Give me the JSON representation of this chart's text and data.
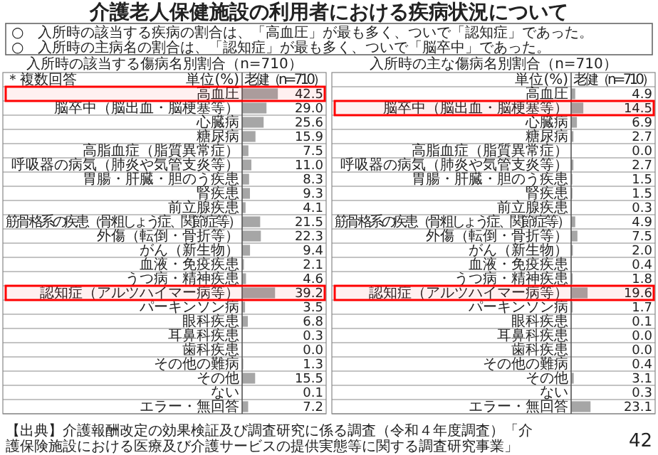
{
  "chart_data": [
    {
      "type": "bar",
      "orientation": "horizontal",
      "title": "入所時の該当する傷病名別割合（n=710）",
      "annotations": [
        "介護老人保健施設の利用者における疾病状況について",
        "○　入所時の該当する疾病の割合は、「高血圧」が最も多く、ついで「認知症」であった。",
        "○　入所時の主病名の割合は、「認知症」が最も多く、ついで「脳卒中」であった。",
        "＊複数回答",
        "単位(%)"
      ],
      "categories": [
        "高血圧",
        "脳卒中（脳出血・脳梗塞等）",
        "心臓病",
        "糖尿病",
        "高脂血症（脂質異常症）",
        "呼吸器の病気（肺炎や気管支炎等）",
        "胃腸・肝臓・胆のう疾患",
        "腎疾患",
        "前立腺疾患",
        "筋骨格系の疾患（骨粗しょう症、関節症等）",
        "外傷（転倒・骨折等）",
        "がん（新生物）",
        "血液・免疫疾患",
        "うつ病・精神疾患",
        "認知症（アルツハイマー病等）",
        "パーキンソン病",
        "眼科疾患",
        "耳鼻科疾患",
        "歯科疾患",
        "その他の難病",
        "その他",
        "ない",
        "エラー・無回答"
      ],
      "series": [
        {
          "name": "老健（n=710）",
          "color": "#a6a6a6",
          "values": [
            42.5,
            29.0,
            25.6,
            15.9,
            7.5,
            11.0,
            8.3,
            9.3,
            4.1,
            21.5,
            22.3,
            9.4,
            2.1,
            4.6,
            39.2,
            3.5,
            6.8,
            0.3,
            0.0,
            1.3,
            15.5,
            0.1,
            7.2
          ],
          "value_labels": [
            "42.5",
            "29.0",
            "25.6",
            "15.9",
            "7.5",
            "11.0",
            "8.3",
            "9.3",
            "4.1",
            "21.5",
            "22.3",
            "9.4",
            "2.1",
            "4.6",
            "39.2",
            "3.5",
            "6.8",
            "0.3",
            "0.0",
            "1.3",
            "15.5",
            "0.1",
            "7.2"
          ]
        }
      ],
      "xlim": [
        0,
        100
      ],
      "tick_labels": "y",
      "bands": [
        {
          "axis": "y",
          "from": "高血圧",
          "to": "高血圧",
          "color": "#ff0000"
        },
        {
          "axis": "y",
          "from": "認知症（アルツハイマー病等）",
          "to": "認知症（アルツハイマー病等）",
          "color": "#ff0000"
        }
      ]
    },
    {
      "type": "bar",
      "orientation": "horizontal",
      "title": "入所時の主な傷病名別割合（n=710）",
      "annotations": [
        "単位(%)",
        "【出典】介護報酬改定の効果検証及び調査研究に係る調査（令和４年度調査）「介護保険施設における医療及び介護サービスの提供実態等に関する調査研究事業」",
        "42"
      ],
      "categories": [
        "高血圧",
        "脳卒中（脳出血・脳梗塞等）",
        "心臓病",
        "糖尿病",
        "高脂血症（脂質異常症）",
        "呼吸器の病気（肺炎や気管支炎等）",
        "胃腸・肝臓・胆のう疾患",
        "腎疾患",
        "前立腺疾患",
        "筋骨格系の疾患（骨粗しょう症、関節症等）",
        "外傷（転倒・骨折等）",
        "がん（新生物）",
        "血液・免疫疾患",
        "うつ病・精神疾患",
        "認知症（アルツハイマー病等）",
        "パーキンソン病",
        "眼科疾患",
        "耳鼻科疾患",
        "歯科疾患",
        "その他の難病",
        "その他",
        "ない",
        "エラー・無回答"
      ],
      "series": [
        {
          "name": "老健（n=710）",
          "color": "#a6a6a6",
          "values": [
            4.9,
            14.5,
            6.9,
            2.7,
            0.0,
            2.7,
            1.5,
            1.5,
            0.3,
            4.9,
            7.5,
            2.0,
            0.4,
            1.8,
            19.6,
            1.7,
            0.1,
            0.0,
            0.0,
            0.4,
            3.1,
            0.3,
            23.1
          ],
          "value_labels": [
            "4.9",
            "14.5",
            "6.9",
            "2.7",
            "0.0",
            "2.7",
            "1.5",
            "1.5",
            "0.3",
            "4.9",
            "7.5",
            "2.0",
            "0.4",
            "1.8",
            "19.6",
            "1.7",
            "0.1",
            "0.0",
            "0.0",
            "0.4",
            "3.1",
            "0.3",
            "23.1"
          ]
        }
      ],
      "xlim": [
        0,
        100
      ],
      "tick_labels": "y",
      "bands": [
        {
          "axis": "y",
          "from": "脳卒中（脳出血・脳梗塞等）",
          "to": "脳卒中（脳出血・脳梗塞等）",
          "color": "#ff0000"
        },
        {
          "axis": "y",
          "from": "認知症（アルツハイマー病等）",
          "to": "認知症（アルツハイマー病等）",
          "color": "#ff0000"
        }
      ]
    }
  ]
}
